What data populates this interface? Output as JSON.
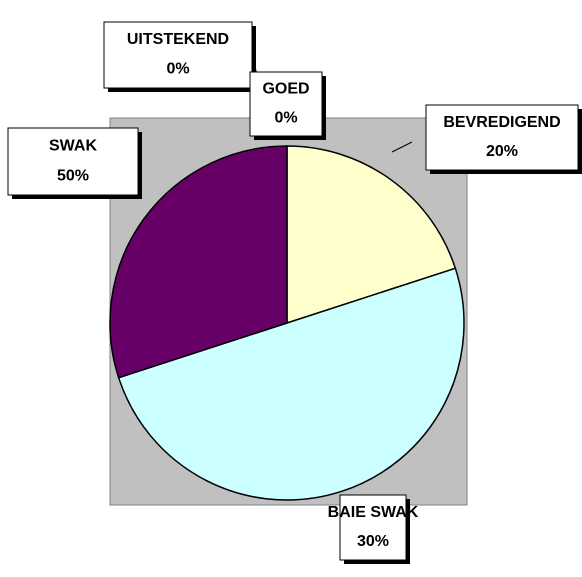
{
  "chart_data": {
    "type": "pie",
    "categories": [
      "UITSTEKEND",
      "GOED",
      "BEVREDIGEND",
      "SWAK",
      "BAIE SWAK"
    ],
    "values": [
      0,
      0,
      20,
      50,
      30
    ],
    "value_labels": [
      "0%",
      "0%",
      "20%",
      "50%",
      "30%"
    ],
    "colors": [
      "#9999ff",
      "#993366",
      "#ffffcc",
      "#ccffff",
      "#660066"
    ]
  }
}
